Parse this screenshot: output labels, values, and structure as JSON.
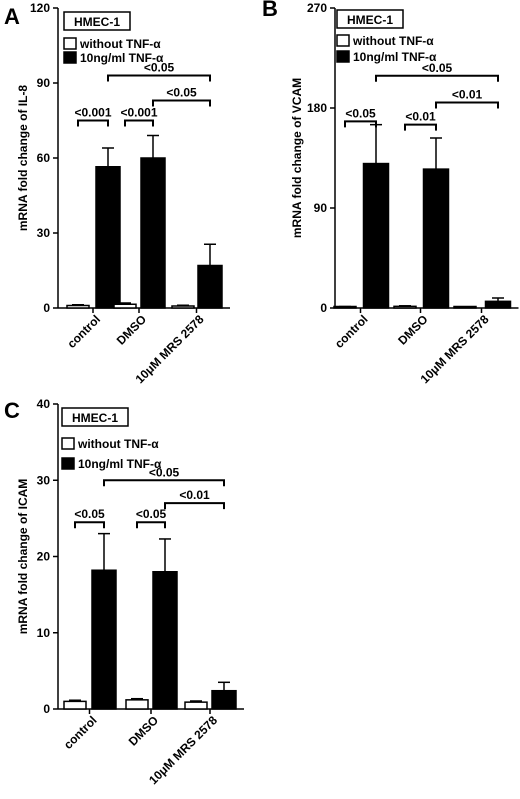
{
  "chart_data": [
    {
      "type": "bar",
      "panel_label": "A",
      "title": "HMEC-1",
      "ylabel": "mRNA fold change of IL-8",
      "categories": [
        "control",
        "DMSO",
        "10μM MRS 2578"
      ],
      "ylim": [
        0,
        120
      ],
      "yticks": [
        0,
        30,
        60,
        90,
        120
      ],
      "series": [
        {
          "name": "without TNF-α",
          "fill": "#ffffff",
          "values": [
            1.0,
            1.5,
            0.8
          ],
          "errors": [
            0.3,
            0.5,
            0.3
          ]
        },
        {
          "name": "10ng/ml TNF-α",
          "fill": "#000000",
          "values": [
            56.5,
            60.0,
            17.0
          ],
          "errors": [
            7.5,
            9.0,
            8.5
          ]
        }
      ],
      "legend": "top-left",
      "comparisons": [
        {
          "label": "<0.001",
          "from": [
            0,
            0
          ],
          "to": [
            0,
            1
          ],
          "level": 75
        },
        {
          "label": "<0.001",
          "from": [
            1,
            0
          ],
          "to": [
            1,
            1
          ],
          "level": 75
        },
        {
          "label": "<0.05",
          "from": [
            1,
            1
          ],
          "to": [
            2,
            1
          ],
          "level": 83
        },
        {
          "label": "<0.05",
          "from": [
            0,
            1
          ],
          "to": [
            2,
            1
          ],
          "level": 93
        }
      ]
    },
    {
      "type": "bar",
      "panel_label": "B",
      "title": "HMEC-1",
      "ylabel": "mRNA fold change of VCAM",
      "categories": [
        "control",
        "DMSO",
        "10μM MRS 2578"
      ],
      "ylim": [
        0,
        270
      ],
      "yticks": [
        0,
        90,
        180,
        270
      ],
      "series": [
        {
          "name": "without TNF-α",
          "fill": "#ffffff",
          "values": [
            1.0,
            1.5,
            0.5
          ],
          "errors": [
            0.3,
            0.5,
            0.2
          ]
        },
        {
          "name": "10ng/ml TNF-α",
          "fill": "#000000",
          "values": [
            130,
            125,
            6
          ],
          "errors": [
            35,
            28,
            3
          ]
        }
      ],
      "legend": "top-left",
      "comparisons": [
        {
          "label": "<0.05",
          "from": [
            0,
            0
          ],
          "to": [
            0,
            1
          ],
          "level": 168
        },
        {
          "label": "<0.01",
          "from": [
            1,
            0
          ],
          "to": [
            1,
            1
          ],
          "level": 165
        },
        {
          "label": "<0.01",
          "from": [
            1,
            1
          ],
          "to": [
            2,
            1
          ],
          "level": 185
        },
        {
          "label": "<0.05",
          "from": [
            0,
            1
          ],
          "to": [
            2,
            1
          ],
          "level": 209
        }
      ]
    },
    {
      "type": "bar",
      "panel_label": "C",
      "title": "HMEC-1",
      "ylabel": "mRNA fold change of ICAM",
      "categories": [
        "control",
        "DMSO",
        "10μM MRS 2578"
      ],
      "ylim": [
        0,
        40
      ],
      "yticks": [
        0,
        10,
        20,
        30,
        40
      ],
      "series": [
        {
          "name": "without TNF-α",
          "fill": "#ffffff",
          "values": [
            1.0,
            1.2,
            0.9
          ],
          "errors": [
            0.15,
            0.15,
            0.15
          ]
        },
        {
          "name": "10ng/ml TNF-α",
          "fill": "#000000",
          "values": [
            18.2,
            18.0,
            2.4
          ],
          "errors": [
            4.8,
            4.3,
            1.1
          ]
        }
      ],
      "legend": "top-left",
      "comparisons": [
        {
          "label": "<0.05",
          "from": [
            0,
            0
          ],
          "to": [
            0,
            1
          ],
          "level": 24.5
        },
        {
          "label": "<0.05",
          "from": [
            1,
            0
          ],
          "to": [
            1,
            1
          ],
          "level": 24.5
        },
        {
          "label": "<0.01",
          "from": [
            1,
            1
          ],
          "to": [
            2,
            1
          ],
          "level": 27.0
        },
        {
          "label": "<0.05",
          "from": [
            0,
            1
          ],
          "to": [
            2,
            1
          ],
          "level": 30.0
        }
      ]
    }
  ]
}
